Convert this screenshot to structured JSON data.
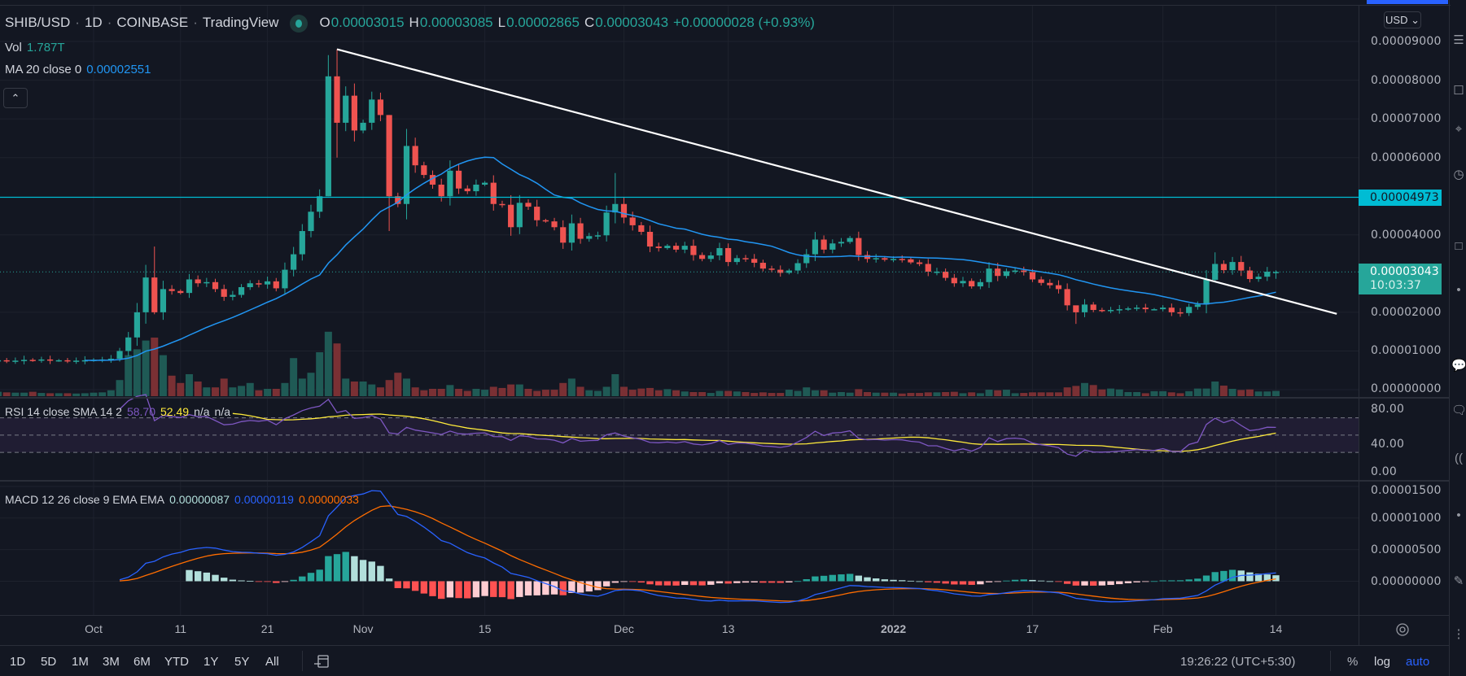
{
  "header": {
    "symbol": "SHIB/USD",
    "interval": "1D",
    "exchange": "COINBASE",
    "source": "TradingView",
    "sep": "·",
    "o_label": "O",
    "o_value": "0.00003015",
    "h_label": "H",
    "h_value": "0.00003085",
    "l_label": "L",
    "l_value": "0.00002865",
    "c_label": "C",
    "c_value": "0.00003043",
    "change": "+0.00000028 (+0.93%)"
  },
  "indicators": {
    "vol_label": "Vol",
    "vol_value": "1.787T",
    "ma_label": "MA 20 close 0",
    "ma_value": "0.00002551",
    "collapse_icon": "chevron-up",
    "rsi_label": "RSI 14 close SMA 14 2",
    "rsi_value": "58.70",
    "rsi_sma_value": "52.49",
    "rsi_na1": "n/a",
    "rsi_na2": "n/a",
    "macd_label": "MACD 12 26 close 9 EMA EMA",
    "macd_hist": "0.00000087",
    "macd_value": "0.00000119",
    "macd_signal": "0.00000033"
  },
  "price_axis": {
    "currency": "USD",
    "ticks": [
      "0.00009000",
      "0.00008000",
      "0.00007000",
      "0.00006000",
      "0.00004000",
      "0.00002000",
      "0.00001000",
      "0.00000000"
    ],
    "tick_values": [
      9,
      8,
      7,
      6,
      4,
      2,
      1,
      0
    ],
    "hline_label": "0.00004973",
    "hline_value": 4.973,
    "last_price_label": "0.00003043",
    "countdown": "10:03:37",
    "rsi_ticks": [
      "80.00",
      "40.00",
      "0.00"
    ],
    "rsi_tick_values": [
      80,
      40,
      0
    ],
    "macd_ticks": [
      "0.00001500",
      "0.00001000",
      "0.00000500",
      "0.00000000"
    ],
    "macd_tick_values": [
      15,
      10,
      5,
      0
    ]
  },
  "time_axis": {
    "labels": [
      "Oct",
      "11",
      "21",
      "Nov",
      "15",
      "Dec",
      "13",
      "2022",
      "17",
      "Feb",
      "14"
    ],
    "day_offsets": [
      0,
      10,
      20,
      31,
      45,
      61,
      73,
      92,
      108,
      123,
      136
    ]
  },
  "bottom_bar": {
    "timeframes": [
      "1D",
      "5D",
      "1M",
      "3M",
      "6M",
      "YTD",
      "1Y",
      "5Y",
      "All"
    ],
    "clock": "19:26:22 (UTC+5:30)",
    "percent": "%",
    "log": "log",
    "auto": "auto"
  },
  "colors": {
    "up": "#26a69a",
    "down": "#ef5350",
    "ma": "#2196f3",
    "rsi": "#7e57c2",
    "rsi_sma": "#ffeb3b",
    "macd": "#2962ff",
    "signal": "#ff6d00",
    "hline": "#00bcd4",
    "trendline": "#ffffff",
    "accent": "#2962ff"
  },
  "chart_data": {
    "type": "candlestick",
    "symbol": "SHIB/USD",
    "price_unit": "1e-5 USD",
    "first_day_offset_from_oct1": -11,
    "close": [
      0.76,
      0.74,
      0.75,
      0.77,
      0.76,
      0.78,
      0.75,
      0.76,
      0.74,
      0.75,
      0.76,
      0.77,
      0.78,
      0.8,
      1.0,
      1.35,
      2.0,
      2.9,
      2.0,
      2.6,
      2.55,
      2.5,
      2.85,
      2.75,
      2.78,
      2.6,
      2.4,
      2.45,
      2.65,
      2.75,
      2.72,
      2.8,
      2.62,
      3.1,
      3.5,
      4.1,
      4.6,
      5.0,
      8.1,
      6.9,
      7.6,
      6.7,
      6.9,
      7.5,
      7.1,
      5.0,
      4.8,
      6.3,
      5.8,
      5.55,
      5.3,
      5.0,
      5.66,
      5.2,
      5.13,
      5.3,
      5.35,
      4.8,
      4.78,
      4.2,
      4.83,
      4.73,
      4.38,
      4.35,
      4.2,
      3.8,
      4.3,
      3.9,
      3.97,
      3.99,
      4.58,
      4.8,
      4.45,
      4.25,
      4.08,
      3.7,
      3.66,
      3.72,
      3.62,
      3.72,
      3.48,
      3.38,
      3.47,
      3.66,
      3.3,
      3.4,
      3.38,
      3.28,
      3.13,
      3.1,
      3.02,
      3.08,
      3.27,
      3.5,
      3.88,
      3.62,
      3.78,
      3.82,
      3.92,
      3.48,
      3.38,
      3.4,
      3.36,
      3.38,
      3.37,
      3.29,
      3.25,
      3.05,
      3.05,
      2.89,
      2.75,
      2.81,
      2.67,
      2.78,
      3.13,
      2.94,
      3.06,
      3.08,
      3.04,
      2.85,
      2.76,
      2.7,
      2.6,
      2.18,
      2.0,
      2.2,
      2.06,
      2.05,
      2.06,
      2.08,
      2.1,
      2.12,
      2.08,
      2.08,
      2.12,
      2.0,
      1.98,
      2.14,
      2.2,
      2.84,
      3.25,
      3.09,
      3.3,
      3.08,
      2.86,
      2.92,
      3.05,
      3.043
    ],
    "last_open": 3.015,
    "wick_overrides": [
      [
        18,
        3.7,
        1.95
      ],
      [
        38,
        8.65,
        5.0
      ],
      [
        39,
        8.8,
        6.0
      ],
      [
        45,
        7.1,
        4.1
      ],
      [
        71,
        5.6,
        4.3
      ],
      [
        124,
        2.05,
        1.7
      ],
      [
        140,
        3.55,
        2.8
      ],
      [
        147,
        3.085,
        2.865
      ]
    ],
    "volume_unit": "T",
    "volume": [
      1.5,
      1.3,
      1.2,
      1.2,
      1.5,
      1.1,
      1.0,
      1.0,
      1.0,
      0.9,
      1.0,
      1.2,
      1.3,
      2.0,
      5.5,
      14,
      16,
      19,
      20,
      14,
      7,
      4.5,
      7.5,
      5,
      3,
      3,
      6,
      3,
      3.5,
      4.5,
      2,
      2.5,
      2.5,
      4.5,
      13,
      6,
      8,
      15,
      22,
      18,
      6,
      5,
      5,
      4,
      3,
      5.5,
      8,
      6,
      3,
      2,
      2.5,
      2.5,
      3.8,
      2.5,
      1.8,
      2.5,
      2.2,
      3.2,
      2.8,
      4,
      4,
      2.5,
      1.8,
      2.2,
      2.2,
      4.5,
      6,
      3.2,
      2,
      1.8,
      3.2,
      7.5,
      3.2,
      2.2,
      2.6,
      2.8,
      2,
      2.4,
      2,
      1.6,
      1.4,
      1.4,
      1.1,
      1.8,
      1.8,
      1.6,
      1.4,
      1.1,
      1.3,
      1.1,
      1.1,
      2.2,
      1.8,
      3,
      2,
      2,
      1.2,
      1.4,
      1.2,
      2.4,
      1.4,
      1.2,
      1.2,
      1.2,
      0.9,
      1.1,
      1.1,
      1.3,
      1.3,
      1.4,
      1.5,
      1.0,
      1.3,
      1.0,
      2.2,
      2.0,
      2.2,
      1.0,
      1.1,
      1.3,
      1.3,
      1.3,
      1.3,
      3.0,
      3.5,
      4.5,
      3.8,
      2.3,
      2.6,
      2.3,
      1.4,
      1.4,
      1.0,
      1.7,
      1.7,
      1.3,
      1.0,
      1.7,
      2.6,
      2.6,
      5.0,
      3.6,
      2.5,
      2.1,
      2.3,
      1.6,
      1.6,
      1.787
    ],
    "ma_period": 20,
    "rsi": {
      "period": 14,
      "sma": 14,
      "upper": 70,
      "middle": 50,
      "lower": 30
    },
    "macd": {
      "fast": 12,
      "slow": 26,
      "signal": 9
    },
    "trendline": {
      "from_day": 28,
      "from_value": 8.8,
      "to_day": 143,
      "to_value": 1.96
    }
  }
}
